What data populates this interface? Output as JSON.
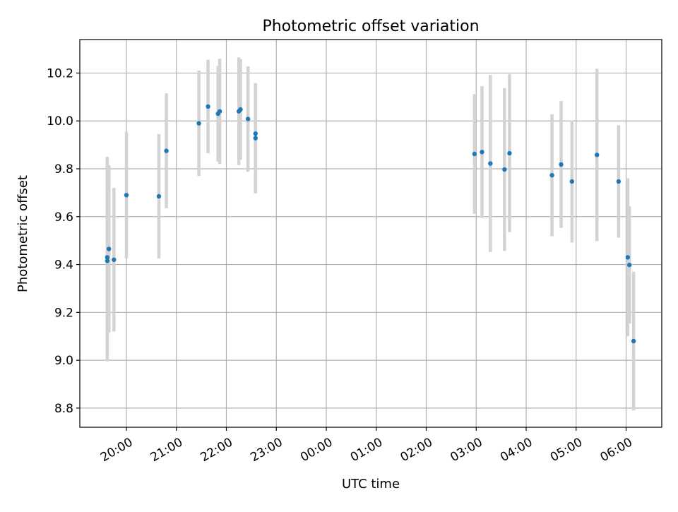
{
  "chart_data": {
    "type": "scatter",
    "title": "Photometric offset variation",
    "xlabel": "UTC time",
    "ylabel": "Photometric offset",
    "x_type": "time",
    "x_ticks": [
      "20:00",
      "21:00",
      "22:00",
      "23:00",
      "00:00",
      "01:00",
      "02:00",
      "03:00",
      "04:00",
      "05:00",
      "06:00"
    ],
    "y_ticks": [
      "8.8",
      "9.0",
      "9.2",
      "9.4",
      "9.6",
      "9.8",
      "10.0",
      "10.2"
    ],
    "ylim": [
      8.72,
      10.34
    ],
    "grid": true,
    "colors": {
      "points": "#1f77b4",
      "errorbars": "#d3d3d3",
      "grid": "#b0b0b0"
    },
    "series": [
      {
        "points": [
          {
            "x": "19:37",
            "y": 9.43,
            "err": 0.42
          },
          {
            "x": "19:37",
            "y": 9.415,
            "err": 0.42
          },
          {
            "x": "19:39",
            "y": 9.465,
            "err": 0.35
          },
          {
            "x": "19:45",
            "y": 9.42,
            "err": 0.3
          },
          {
            "x": "20:00",
            "y": 9.69,
            "err": 0.265
          },
          {
            "x": "20:39",
            "y": 9.685,
            "err": 0.26
          },
          {
            "x": "20:48",
            "y": 9.875,
            "err": 0.24
          },
          {
            "x": "21:27",
            "y": 9.99,
            "err": 0.22
          },
          {
            "x": "21:38",
            "y": 10.06,
            "err": 0.195
          },
          {
            "x": "21:50",
            "y": 10.03,
            "err": 0.2
          },
          {
            "x": "21:52",
            "y": 10.04,
            "err": 0.22
          },
          {
            "x": "22:15",
            "y": 10.04,
            "err": 0.225
          },
          {
            "x": "22:17",
            "y": 10.048,
            "err": 0.21
          },
          {
            "x": "22:26",
            "y": 10.008,
            "err": 0.22
          },
          {
            "x": "22:35",
            "y": 9.947,
            "err": 0.21
          },
          {
            "x": "22:35",
            "y": 9.928,
            "err": 0.23
          },
          {
            "x": "02:58",
            "y": 9.862,
            "err": 0.25
          },
          {
            "x": "03:07",
            "y": 9.87,
            "err": 0.275
          },
          {
            "x": "03:17",
            "y": 9.822,
            "err": 0.37
          },
          {
            "x": "03:34",
            "y": 9.797,
            "err": 0.34
          },
          {
            "x": "03:40",
            "y": 9.865,
            "err": 0.33
          },
          {
            "x": "04:31",
            "y": 9.773,
            "err": 0.255
          },
          {
            "x": "04:42",
            "y": 9.818,
            "err": 0.265
          },
          {
            "x": "04:55",
            "y": 9.747,
            "err": 0.255
          },
          {
            "x": "05:25",
            "y": 9.858,
            "err": 0.36
          },
          {
            "x": "05:51",
            "y": 9.747,
            "err": 0.235
          },
          {
            "x": "06:02",
            "y": 9.43,
            "err": 0.33
          },
          {
            "x": "06:04",
            "y": 9.398,
            "err": 0.245
          },
          {
            "x": "06:09",
            "y": 9.08,
            "err": 0.29
          }
        ]
      }
    ]
  }
}
